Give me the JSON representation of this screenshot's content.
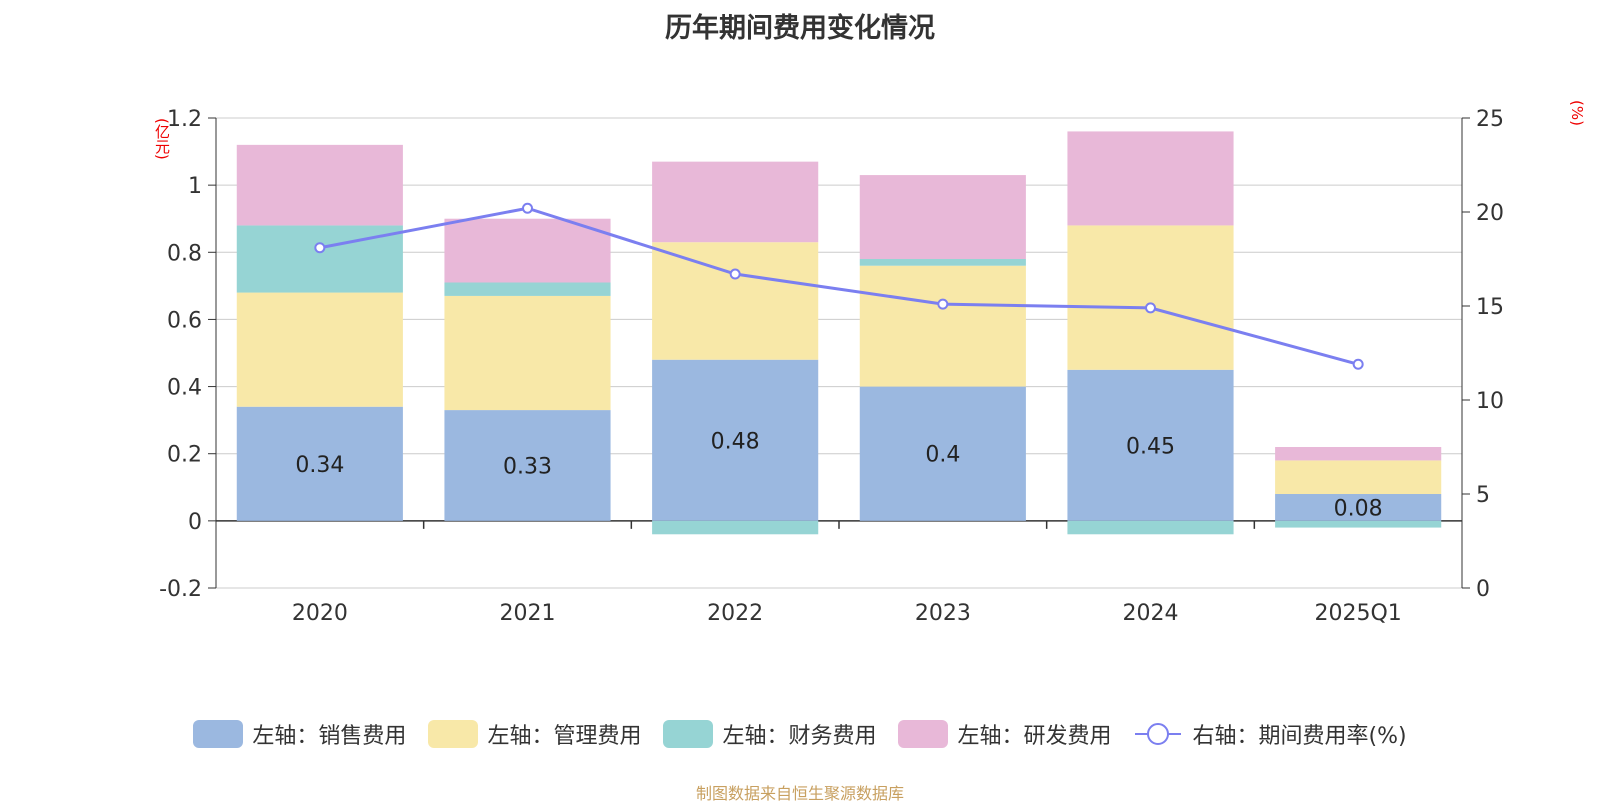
{
  "chart_data": {
    "title": "历年期间费用变化情况",
    "left_unit": "(亿元)",
    "right_unit": "(%)",
    "categories": [
      "2020",
      "2021",
      "2022",
      "2023",
      "2024",
      "2025Q1"
    ],
    "left_axis": {
      "min": -0.2,
      "max": 1.2,
      "ticks": [
        "-0.2",
        "0",
        "0.2",
        "0.4",
        "0.6",
        "0.8",
        "1",
        "1.2"
      ]
    },
    "right_axis": {
      "min": 0,
      "max": 25,
      "ticks": [
        "0",
        "5",
        "10",
        "15",
        "20",
        "25"
      ]
    },
    "bar_series": [
      {
        "name": "左轴：销售费用",
        "color": "#9bb8e0",
        "values": [
          0.34,
          0.33,
          0.48,
          0.4,
          0.45,
          0.08
        ],
        "labels": [
          "0.34",
          "0.33",
          "0.48",
          "0.4",
          "0.45",
          "0.08"
        ]
      },
      {
        "name": "左轴：管理费用",
        "color": "#f8e8a8",
        "values": [
          0.34,
          0.34,
          0.35,
          0.36,
          0.43,
          0.1
        ]
      },
      {
        "name": "左轴：财务费用",
        "color": "#96d4d4",
        "values": [
          0.2,
          0.04,
          -0.04,
          0.02,
          -0.04,
          -0.02
        ]
      },
      {
        "name": "左轴：研发费用",
        "color": "#e8b8d8",
        "values": [
          0.24,
          0.19,
          0.24,
          0.25,
          0.28,
          0.04
        ]
      }
    ],
    "line_series": {
      "name": "右轴：期间费用率(%)",
      "color": "#7b7ff0",
      "values": [
        18.1,
        20.2,
        16.7,
        15.1,
        14.9,
        11.9
      ]
    }
  },
  "source_note": "制图数据来自恒生聚源数据库"
}
